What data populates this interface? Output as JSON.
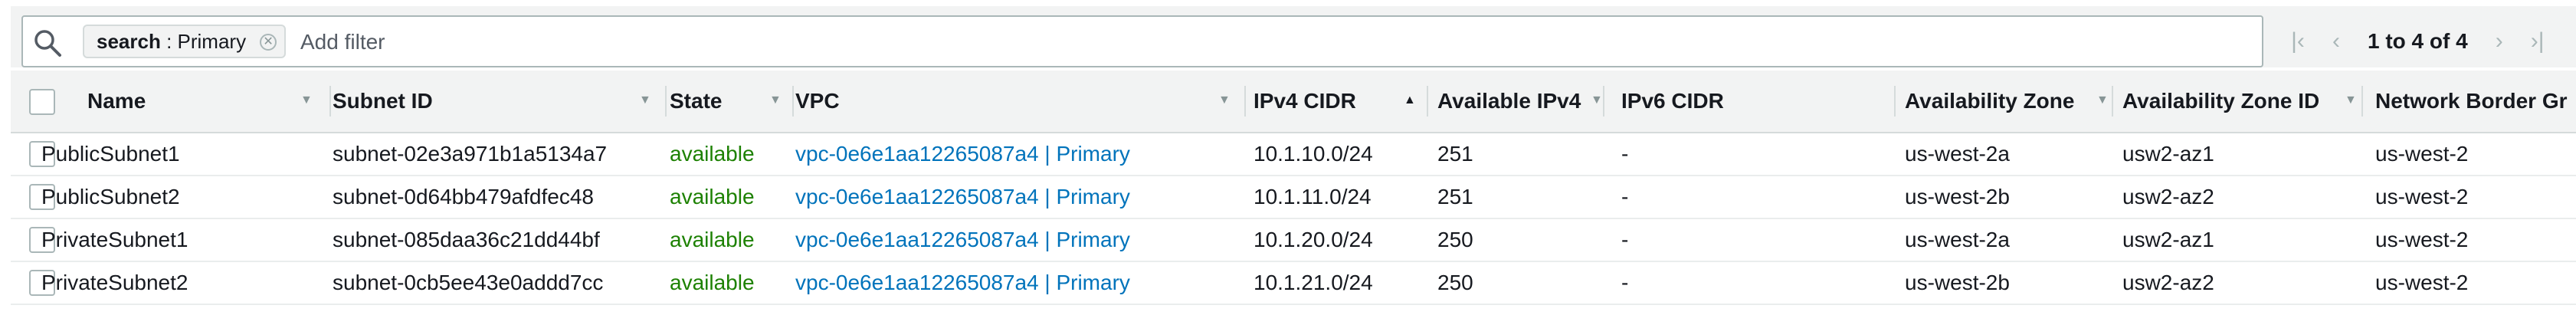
{
  "filter": {
    "token_key": "search",
    "token_separator": " : ",
    "token_value": "Primary",
    "placeholder": "Add filter"
  },
  "pagination": {
    "range_text": "1 to 4 of 4"
  },
  "columns": [
    {
      "key": "name",
      "label": "Name"
    },
    {
      "key": "subnet_id",
      "label": "Subnet ID"
    },
    {
      "key": "state",
      "label": "State"
    },
    {
      "key": "vpc",
      "label": "VPC"
    },
    {
      "key": "ipv4_cidr",
      "label": "IPv4 CIDR"
    },
    {
      "key": "available_ipv4",
      "label": "Available IPv4"
    },
    {
      "key": "ipv6_cidr",
      "label": "IPv6 CIDR"
    },
    {
      "key": "az",
      "label": "Availability Zone"
    },
    {
      "key": "az_id",
      "label": "Availability Zone ID"
    },
    {
      "key": "nbg",
      "label": "Network Border Gr"
    }
  ],
  "rows": [
    {
      "name": "PublicSubnet1",
      "subnet_id": "subnet-02e3a971b1a5134a7",
      "state": "available",
      "vpc": "vpc-0e6e1aa12265087a4 | Primary",
      "ipv4_cidr": "10.1.10.0/24",
      "available_ipv4": "251",
      "ipv6_cidr": "-",
      "az": "us-west-2a",
      "az_id": "usw2-az1",
      "nbg": "us-west-2"
    },
    {
      "name": "PublicSubnet2",
      "subnet_id": "subnet-0d64bb479afdfec48",
      "state": "available",
      "vpc": "vpc-0e6e1aa12265087a4 | Primary",
      "ipv4_cidr": "10.1.11.0/24",
      "available_ipv4": "251",
      "ipv6_cidr": "-",
      "az": "us-west-2b",
      "az_id": "usw2-az2",
      "nbg": "us-west-2"
    },
    {
      "name": "PrivateSubnet1",
      "subnet_id": "subnet-085daa36c21dd44bf",
      "state": "available",
      "vpc": "vpc-0e6e1aa12265087a4 | Primary",
      "ipv4_cidr": "10.1.20.0/24",
      "available_ipv4": "250",
      "ipv6_cidr": "-",
      "az": "us-west-2a",
      "az_id": "usw2-az1",
      "nbg": "us-west-2"
    },
    {
      "name": "PrivateSubnet2",
      "subnet_id": "subnet-0cb5ee43e0addd7cc",
      "state": "available",
      "vpc": "vpc-0e6e1aa12265087a4 | Primary",
      "ipv4_cidr": "10.1.21.0/24",
      "available_ipv4": "250",
      "ipv6_cidr": "-",
      "az": "us-west-2b",
      "az_id": "usw2-az2",
      "nbg": "us-west-2"
    }
  ]
}
